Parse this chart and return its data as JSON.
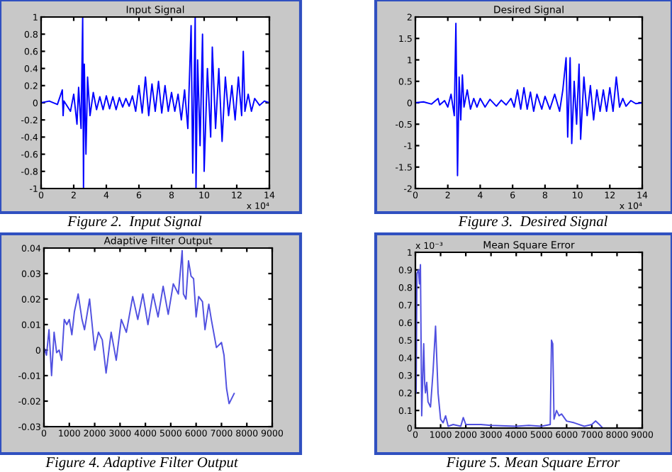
{
  "chart_data": [
    {
      "type": "line",
      "title": "Input Signal",
      "color": "#0000ff",
      "xlim": [
        0,
        14
      ],
      "xticks": [
        0,
        2,
        4,
        6,
        8,
        10,
        12,
        14
      ],
      "ylim": [
        -1,
        1
      ],
      "yticks": [
        -1,
        -0.8,
        -0.6,
        -0.4,
        -0.2,
        0,
        0.2,
        0.4,
        0.6,
        0.8,
        1
      ],
      "grid": false,
      "annotations": [
        "x 10⁴",
        "Figure 2.  Input Signal"
      ],
      "x": [
        0,
        0.5,
        1.0,
        1.3,
        1.35,
        1.4,
        1.8,
        2.0,
        2.2,
        2.3,
        2.45,
        2.55,
        2.6,
        2.65,
        2.75,
        2.85,
        3.0,
        3.2,
        3.4,
        3.6,
        3.8,
        4.0,
        4.2,
        4.4,
        4.6,
        4.8,
        5.0,
        5.2,
        5.4,
        5.6,
        5.8,
        6.0,
        6.2,
        6.4,
        6.6,
        6.8,
        7.0,
        7.2,
        7.4,
        7.6,
        7.8,
        8.0,
        8.2,
        8.4,
        8.6,
        8.8,
        9.0,
        9.2,
        9.3,
        9.45,
        9.5,
        9.6,
        9.75,
        9.9,
        10.0,
        10.2,
        10.4,
        10.5,
        10.7,
        10.9,
        11.1,
        11.3,
        11.5,
        11.7,
        11.9,
        12.1,
        12.3,
        12.4,
        12.5,
        12.7,
        12.9,
        13.1,
        13.4,
        13.7,
        14.0
      ],
      "values": [
        0,
        0.02,
        -0.02,
        0.15,
        -0.15,
        0.02,
        -0.1,
        0.1,
        -0.25,
        0.18,
        -0.3,
        1.0,
        -1.0,
        0.45,
        -0.6,
        0.3,
        -0.15,
        0.12,
        -0.08,
        0.07,
        -0.08,
        0.08,
        -0.07,
        0.07,
        -0.08,
        0.06,
        -0.05,
        0.05,
        -0.04,
        0.08,
        -0.1,
        0.2,
        -0.12,
        0.3,
        -0.15,
        0.22,
        -0.1,
        0.25,
        -0.12,
        0.2,
        -0.1,
        0.12,
        -0.1,
        0.1,
        -0.2,
        0.15,
        -0.3,
        0.9,
        -0.82,
        1.0,
        -1.0,
        0.5,
        -0.5,
        0.8,
        -0.8,
        0.4,
        -0.4,
        0.65,
        -0.3,
        0.4,
        -0.45,
        0.3,
        -0.15,
        0.2,
        -0.2,
        0.3,
        -0.15,
        0.6,
        -0.1,
        0.1,
        -0.1,
        0.05,
        -0.03,
        0.02,
        0
      ]
    },
    {
      "type": "line",
      "title": "Desired Signal",
      "color": "#0000ff",
      "xlim": [
        0,
        14
      ],
      "xticks": [
        0,
        2,
        4,
        6,
        8,
        10,
        12,
        14
      ],
      "ylim": [
        -2,
        2
      ],
      "yticks": [
        -2,
        -1.5,
        -1,
        -0.5,
        0,
        0.5,
        1,
        1.5,
        2
      ],
      "grid": false,
      "annotations": [
        "x 10⁴",
        "Figure 3.  Desired Signal"
      ],
      "x": [
        0,
        0.5,
        1.0,
        1.4,
        1.5,
        1.8,
        2.0,
        2.2,
        2.4,
        2.5,
        2.6,
        2.7,
        2.8,
        2.9,
        3.0,
        3.2,
        3.4,
        3.6,
        3.8,
        4.0,
        4.3,
        4.6,
        5.0,
        5.3,
        5.6,
        5.9,
        6.1,
        6.3,
        6.5,
        6.7,
        6.9,
        7.1,
        7.3,
        7.5,
        7.8,
        8.0,
        8.3,
        8.6,
        8.9,
        9.1,
        9.3,
        9.4,
        9.55,
        9.65,
        9.8,
        9.95,
        10.1,
        10.2,
        10.4,
        10.6,
        10.8,
        11.0,
        11.2,
        11.4,
        11.6,
        11.8,
        12.0,
        12.2,
        12.4,
        12.6,
        12.8,
        13.0,
        13.3,
        13.6,
        14.0
      ],
      "values": [
        0,
        0.02,
        -0.03,
        0.1,
        -0.05,
        0.05,
        -0.1,
        0.2,
        -0.3,
        1.85,
        -1.7,
        0.6,
        -0.4,
        0.65,
        -0.1,
        0.3,
        -0.15,
        0.1,
        -0.1,
        0.1,
        -0.1,
        0.08,
        -0.08,
        0.06,
        -0.05,
        0.1,
        -0.1,
        0.3,
        -0.15,
        0.35,
        -0.15,
        0.25,
        -0.2,
        0.2,
        -0.15,
        0.15,
        -0.15,
        0.2,
        -0.2,
        0.3,
        1.05,
        -0.8,
        1.05,
        -0.95,
        0.5,
        -0.5,
        0.9,
        -0.85,
        0.6,
        -0.3,
        0.4,
        -0.4,
        0.3,
        -0.2,
        0.3,
        -0.2,
        0.35,
        -0.2,
        0.6,
        -0.1,
        0.1,
        -0.08,
        0.05,
        -0.02,
        0
      ]
    },
    {
      "type": "line",
      "title": "Adaptive Filter Output",
      "color": "#5050e0",
      "xlim": [
        0,
        9000
      ],
      "xticks": [
        0,
        1000,
        2000,
        3000,
        4000,
        5000,
        6000,
        7000,
        8000,
        9000
      ],
      "ylim": [
        -0.03,
        0.04
      ],
      "yticks": [
        -0.03,
        -0.02,
        -0.01,
        0,
        0.01,
        0.02,
        0.03,
        0.04
      ],
      "grid": false,
      "annotations": [
        "Figure 4. Adaptive Filter Output"
      ],
      "x": [
        0,
        100,
        200,
        300,
        400,
        500,
        600,
        700,
        800,
        900,
        1000,
        1100,
        1200,
        1350,
        1500,
        1600,
        1800,
        2000,
        2150,
        2300,
        2450,
        2650,
        2850,
        3050,
        3250,
        3500,
        3700,
        3900,
        4100,
        4300,
        4500,
        4700,
        4900,
        5100,
        5300,
        5450,
        5500,
        5600,
        5700,
        5800,
        5900,
        6000,
        6100,
        6250,
        6350,
        6500,
        6600,
        6800,
        7000,
        7100,
        7200,
        7300,
        7500
      ],
      "values": [
        0.001,
        -0.002,
        0.008,
        -0.01,
        0.007,
        -0.001,
        0.0,
        -0.004,
        0.012,
        0.01,
        0.012,
        0.006,
        0.015,
        0.022,
        0.012,
        0.008,
        0.02,
        0.0,
        0.007,
        0.004,
        -0.009,
        0.007,
        -0.004,
        0.012,
        0.007,
        0.021,
        0.012,
        0.022,
        0.01,
        0.022,
        0.013,
        0.025,
        0.014,
        0.026,
        0.022,
        0.039,
        0.022,
        0.02,
        0.035,
        0.029,
        0.028,
        0.013,
        0.021,
        0.019,
        0.008,
        0.018,
        0.012,
        0.001,
        0.003,
        -0.002,
        -0.015,
        -0.021,
        -0.017
      ]
    },
    {
      "type": "line",
      "title": "Mean Square Error",
      "color": "#5050e0",
      "xlim": [
        0,
        9000
      ],
      "xticks": [
        0,
        1000,
        2000,
        3000,
        4000,
        5000,
        6000,
        7000,
        8000,
        9000
      ],
      "ylim": [
        0,
        1
      ],
      "yticks": [
        0,
        0.1,
        0.2,
        0.3,
        0.4,
        0.5,
        0.6,
        0.7,
        0.8,
        0.9,
        1
      ],
      "grid": false,
      "annotations": [
        "x 10⁻³",
        "Figure 5. Mean Square Error"
      ],
      "x": [
        0,
        30,
        60,
        120,
        160,
        200,
        250,
        330,
        370,
        400,
        450,
        500,
        600,
        700,
        800,
        900,
        1000,
        1100,
        1200,
        1300,
        1500,
        1800,
        1900,
        2000,
        2300,
        2600,
        3000,
        4000,
        4500,
        5000,
        5350,
        5400,
        5450,
        5500,
        5600,
        5700,
        5800,
        6000,
        6300,
        6700,
        7000,
        7150,
        7300,
        7400
      ],
      "values": [
        0.28,
        0.2,
        0.88,
        0.9,
        0.82,
        0.93,
        0.07,
        0.48,
        0.25,
        0.2,
        0.26,
        0.15,
        0.12,
        0.32,
        0.58,
        0.2,
        0.05,
        0.03,
        0.07,
        0.01,
        0.02,
        0.01,
        0.06,
        0.02,
        0.02,
        0.02,
        0.015,
        0.01,
        0.015,
        0.01,
        0.02,
        0.5,
        0.48,
        0.05,
        0.1,
        0.07,
        0.08,
        0.04,
        0.03,
        0.01,
        0.02,
        0.04,
        0.02,
        0.005
      ]
    }
  ]
}
